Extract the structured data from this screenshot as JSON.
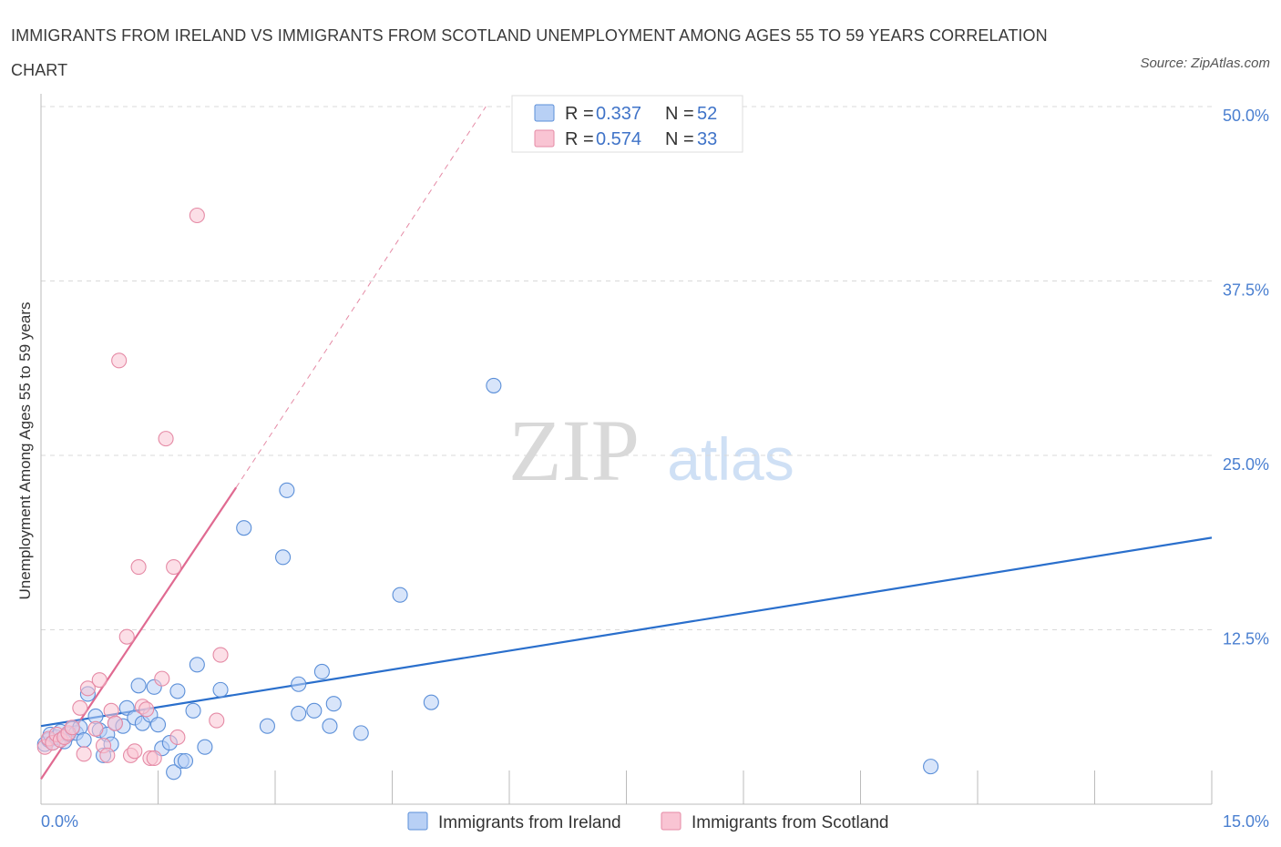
{
  "title": "IMMIGRANTS FROM IRELAND VS IMMIGRANTS FROM SCOTLAND UNEMPLOYMENT AMONG AGES 55 TO 59 YEARS CORRELATION CHART",
  "source": "Source: ZipAtlas.com",
  "watermark": {
    "zip": "ZIP",
    "atlas": "atlas"
  },
  "colors": {
    "ireland_fill": "#b8d0f5",
    "ireland_stroke": "#5b8fd8",
    "ireland_line": "#2a6fcc",
    "scotland_fill": "#f9c4d3",
    "scotland_stroke": "#e58aa5",
    "scotland_line": "#e06a91",
    "grid": "#d9d9d9",
    "axis_text": "#4a7fd0"
  },
  "legend": {
    "r_label": "R =",
    "n_label": "N =",
    "rows": [
      {
        "series": "Immigrants from Ireland",
        "r": "0.337",
        "n": "52"
      },
      {
        "series": "Immigrants from Scotland",
        "r": "0.574",
        "n": "33"
      }
    ]
  },
  "chart_data": {
    "type": "scatter",
    "title": "IMMIGRANTS FROM IRELAND VS IMMIGRANTS FROM SCOTLAND UNEMPLOYMENT AMONG AGES 55 TO 59 YEARS CORRELATION CHART",
    "xlabel": "",
    "ylabel": "Unemployment Among Ages 55 to 59 years",
    "xlim": [
      0,
      15
    ],
    "ylim": [
      0,
      50
    ],
    "x_tick_labels": [
      "0.0%",
      "15.0%"
    ],
    "y_ticks": [
      12.5,
      25.0,
      37.5,
      50.0
    ],
    "y_tick_labels": [
      "12.5%",
      "25.0%",
      "37.5%",
      "50.0%"
    ],
    "legend_position": "top-center",
    "series": [
      {
        "name": "Immigrants from Ireland",
        "r": 0.337,
        "n": 52,
        "trend": {
          "x": [
            0.0,
            15.0
          ],
          "y": [
            5.6,
            19.1
          ],
          "style": "solid"
        },
        "points": [
          [
            0.05,
            4.3
          ],
          [
            0.1,
            4.6
          ],
          [
            0.12,
            5.0
          ],
          [
            0.15,
            4.4
          ],
          [
            0.2,
            4.8
          ],
          [
            0.25,
            5.2
          ],
          [
            0.3,
            4.5
          ],
          [
            0.35,
            5.0
          ],
          [
            0.4,
            5.4
          ],
          [
            0.45,
            5.1
          ],
          [
            0.5,
            5.5
          ],
          [
            0.55,
            4.6
          ],
          [
            0.6,
            7.9
          ],
          [
            0.7,
            6.3
          ],
          [
            0.75,
            5.3
          ],
          [
            0.8,
            3.5
          ],
          [
            0.85,
            5.0
          ],
          [
            0.9,
            4.3
          ],
          [
            0.95,
            5.8
          ],
          [
            1.05,
            5.6
          ],
          [
            1.1,
            6.9
          ],
          [
            1.2,
            6.2
          ],
          [
            1.25,
            8.5
          ],
          [
            1.3,
            5.8
          ],
          [
            1.4,
            6.4
          ],
          [
            1.45,
            8.4
          ],
          [
            1.5,
            5.7
          ],
          [
            1.55,
            4.0
          ],
          [
            1.65,
            4.4
          ],
          [
            1.7,
            2.3
          ],
          [
            1.75,
            8.1
          ],
          [
            1.8,
            3.1
          ],
          [
            1.85,
            3.1
          ],
          [
            1.95,
            6.7
          ],
          [
            2.0,
            10.0
          ],
          [
            2.1,
            4.1
          ],
          [
            2.3,
            8.2
          ],
          [
            2.6,
            19.8
          ],
          [
            2.9,
            5.6
          ],
          [
            3.1,
            17.7
          ],
          [
            3.15,
            22.5
          ],
          [
            3.3,
            8.6
          ],
          [
            3.3,
            6.5
          ],
          [
            3.5,
            6.7
          ],
          [
            3.6,
            9.5
          ],
          [
            3.7,
            5.6
          ],
          [
            3.75,
            7.2
          ],
          [
            4.1,
            5.1
          ],
          [
            4.6,
            15.0
          ],
          [
            5.0,
            7.3
          ],
          [
            5.8,
            30.0
          ],
          [
            11.4,
            2.7
          ]
        ]
      },
      {
        "name": "Immigrants from Scotland",
        "r": 0.574,
        "n": 33,
        "trend": {
          "x": [
            0.0,
            2.5
          ],
          "y": [
            1.8,
            22.7
          ],
          "style": "solid"
        },
        "trend_extension": {
          "x": [
            2.5,
            5.7
          ],
          "y": [
            22.7,
            50.0
          ],
          "style": "dashed"
        },
        "points": [
          [
            0.05,
            4.1
          ],
          [
            0.1,
            4.7
          ],
          [
            0.15,
            4.4
          ],
          [
            0.2,
            5.0
          ],
          [
            0.25,
            4.6
          ],
          [
            0.3,
            4.8
          ],
          [
            0.35,
            5.1
          ],
          [
            0.4,
            5.5
          ],
          [
            0.5,
            6.9
          ],
          [
            0.55,
            3.6
          ],
          [
            0.6,
            8.3
          ],
          [
            0.7,
            5.4
          ],
          [
            0.75,
            8.9
          ],
          [
            0.8,
            4.2
          ],
          [
            0.85,
            3.5
          ],
          [
            0.9,
            6.7
          ],
          [
            0.95,
            5.8
          ],
          [
            1.0,
            31.8
          ],
          [
            1.1,
            12.0
          ],
          [
            1.15,
            3.5
          ],
          [
            1.2,
            3.8
          ],
          [
            1.25,
            17.0
          ],
          [
            1.3,
            7.0
          ],
          [
            1.35,
            6.8
          ],
          [
            1.4,
            3.3
          ],
          [
            1.45,
            3.3
          ],
          [
            1.55,
            9.0
          ],
          [
            1.6,
            26.2
          ],
          [
            1.7,
            17.0
          ],
          [
            2.0,
            42.2
          ],
          [
            2.3,
            10.7
          ],
          [
            1.75,
            4.8
          ],
          [
            2.25,
            6.0
          ]
        ]
      }
    ]
  }
}
